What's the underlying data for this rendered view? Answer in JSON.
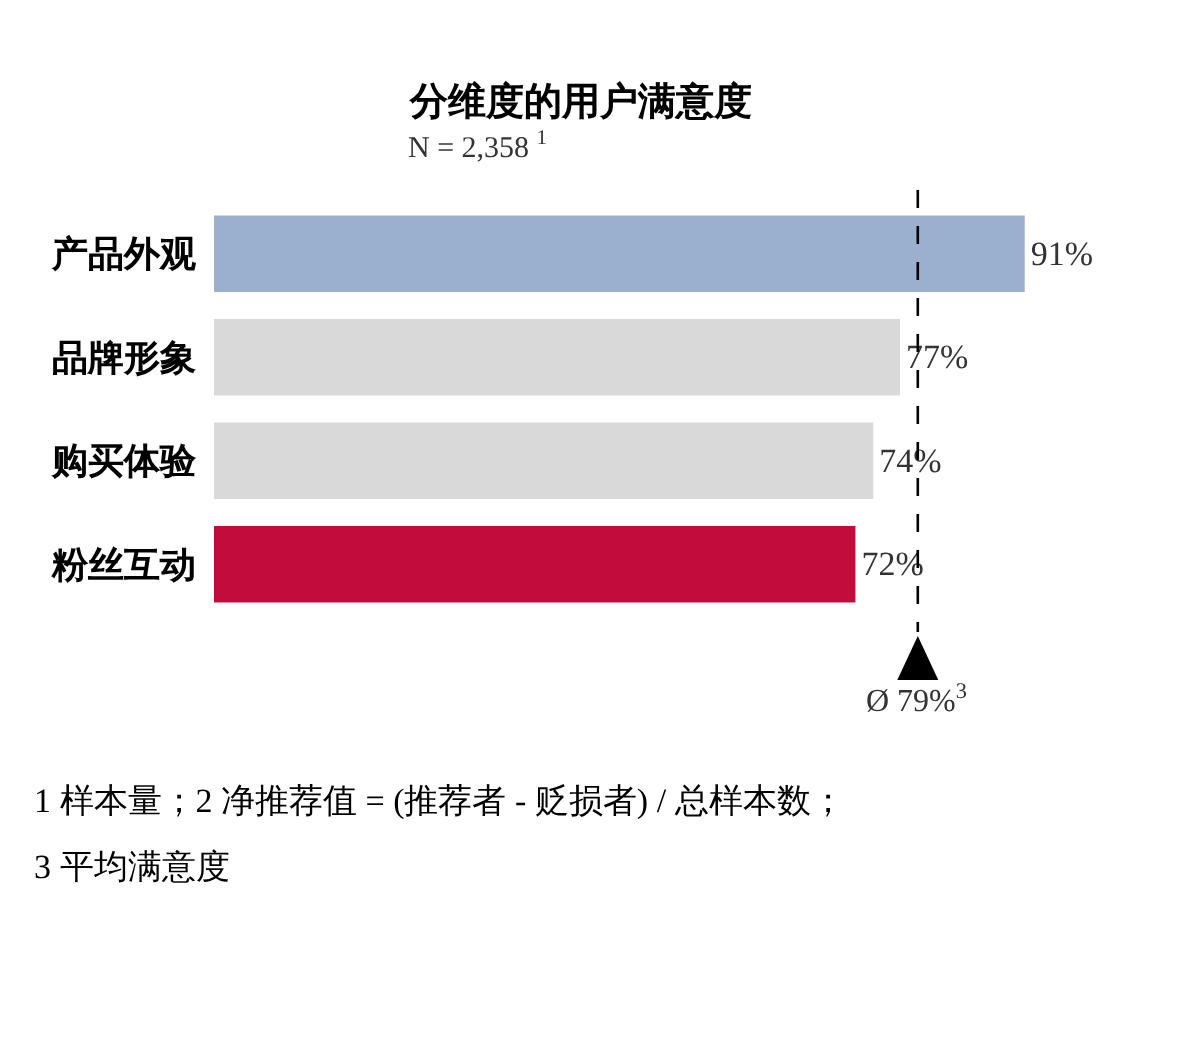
{
  "chart_data": {
    "type": "bar",
    "orientation": "horizontal",
    "title": "分维度的用户满意度",
    "subtitle": "N = 2,358 $^{1}$",
    "categories": [
      "产品外观",
      "品牌形象",
      "购买体验",
      "粉丝互动"
    ],
    "values": [
      91,
      77,
      74,
      72
    ],
    "value_labels": [
      "91%",
      "77%",
      "74%",
      "72%"
    ],
    "colors": [
      "#9bb0cf",
      "#d9d9d9",
      "#d9d9d9",
      "#c20c3b"
    ],
    "ref_lines": [
      {
        "axis": "x",
        "value": 79,
        "label": "Ø 79%$^{3}$",
        "line_style": "dashed",
        "color": "#000000"
      }
    ],
    "annotations": [
      "1 样本量；2 净推荐值 = (推荐者 - 贬损者) / 总样本数；",
      "3 平均满意度"
    ],
    "legend": false
  }
}
